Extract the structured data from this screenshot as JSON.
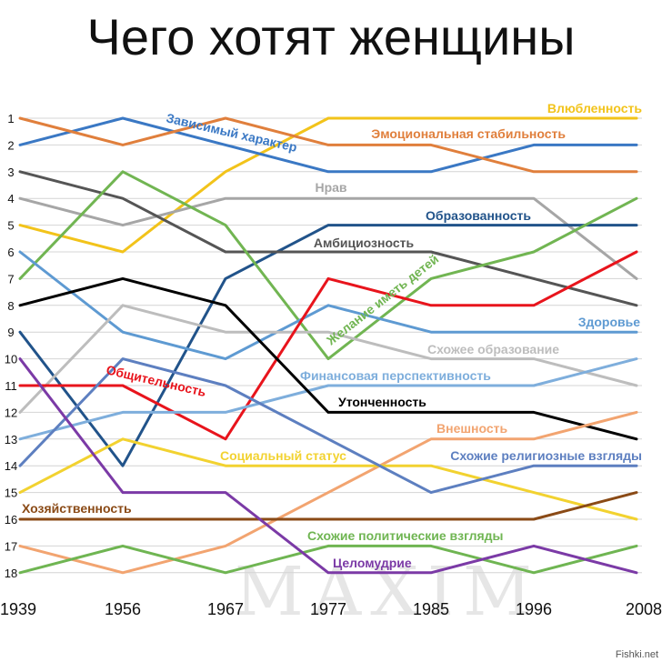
{
  "chart_data": {
    "type": "line",
    "title": "Чего хотят женщины",
    "x": [
      "1939",
      "1956",
      "1967",
      "1977",
      "1985",
      "1996",
      "2008"
    ],
    "y_ticks": [
      1,
      2,
      3,
      4,
      5,
      6,
      7,
      8,
      9,
      10,
      11,
      12,
      13,
      14,
      15,
      16,
      17,
      18
    ],
    "ylim": [
      1,
      18
    ],
    "y_reversed": true,
    "grid": true,
    "legend": "inline-labels",
    "series": [
      {
        "name": "Влюбленность",
        "color": "#f2c31a",
        "values": [
          5,
          6,
          3,
          1,
          1,
          1,
          1
        ]
      },
      {
        "name": "Зависимый характер",
        "color": "#3a78c4",
        "values": [
          2,
          1,
          2,
          3,
          3,
          2,
          2
        ]
      },
      {
        "name": "Эмоциональная стабильность",
        "color": "#e07f3c",
        "values": [
          1,
          2,
          1,
          2,
          2,
          3,
          3
        ]
      },
      {
        "name": "Нрав",
        "color": "#a6a6a6",
        "values": [
          4,
          5,
          4,
          4,
          4,
          4,
          7
        ]
      },
      {
        "name": "Образованность",
        "color": "#21538a",
        "values": [
          9,
          14,
          7,
          5,
          5,
          5,
          5
        ]
      },
      {
        "name": "Амбициозность",
        "color": "#555555",
        "values": [
          3,
          4,
          6,
          6,
          6,
          7,
          8
        ]
      },
      {
        "name": "Желание иметь детей",
        "color": "#71b552",
        "values": [
          7,
          3,
          5,
          10,
          7,
          6,
          4
        ]
      },
      {
        "name": "Здоровье",
        "color": "#5e9ad2",
        "values": [
          6,
          9,
          10,
          8,
          9,
          9,
          9
        ]
      },
      {
        "name": "Схожее образование",
        "color": "#bdbdbd",
        "values": [
          12,
          8,
          9,
          9,
          10,
          10,
          11
        ]
      },
      {
        "name": "Общительность",
        "color": "#e8141c",
        "values": [
          11,
          11,
          13,
          7,
          8,
          8,
          6
        ]
      },
      {
        "name": "Финансовая перспективность",
        "color": "#7eaedc",
        "values": [
          13,
          12,
          12,
          11,
          11,
          11,
          10
        ]
      },
      {
        "name": "Утонченность",
        "color": "#000000",
        "values": [
          8,
          7,
          8,
          12,
          12,
          12,
          13
        ]
      },
      {
        "name": "Внешность",
        "color": "#f2a470",
        "values": [
          17,
          18,
          17,
          15,
          13,
          13,
          12
        ]
      },
      {
        "name": "Социальный статус",
        "color": "#f2d230",
        "values": [
          15,
          13,
          14,
          14,
          14,
          15,
          16
        ]
      },
      {
        "name": "Схожие религиозные взгляды",
        "color": "#5d7fc0",
        "values": [
          14,
          10,
          11,
          13,
          15,
          14,
          14
        ]
      },
      {
        "name": "Хозяйственность",
        "color": "#8a4a16",
        "values": [
          16,
          16,
          16,
          16,
          16,
          16,
          15
        ]
      },
      {
        "name": "Схожие политические взгляды",
        "color": "#6fb552",
        "values": [
          18,
          17,
          18,
          17,
          17,
          18,
          17
        ]
      },
      {
        "name": "Целомудрие",
        "color": "#7b3aa6",
        "values": [
          10,
          15,
          15,
          18,
          18,
          17,
          18
        ]
      }
    ]
  },
  "watermark": "MAXIM",
  "credit": "Fishki.net"
}
